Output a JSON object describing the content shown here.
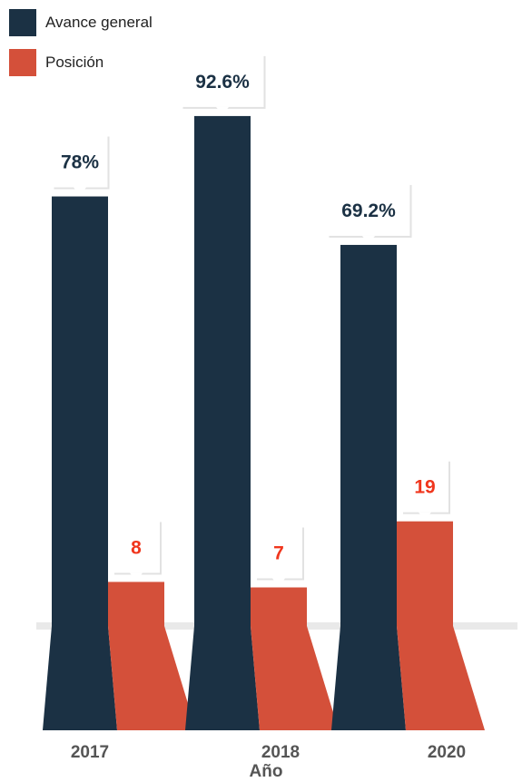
{
  "chart_data": {
    "type": "bar",
    "categories": [
      "2017",
      "2018",
      "2020"
    ],
    "series": [
      {
        "name": "Avance general",
        "values": [
          78,
          92.6,
          69.2
        ],
        "labels": [
          "78%",
          "92.6%",
          "69.2%"
        ],
        "color": "#1b3144",
        "label_color": "#1b3144"
      },
      {
        "name": "Posición",
        "values": [
          8,
          7,
          19
        ],
        "labels": [
          "8",
          "7",
          "19"
        ],
        "color": "#d4503a",
        "label_color": "#f0361d"
      }
    ],
    "xlabel": "Año",
    "ylabel": "",
    "ylim": [
      0,
      100
    ],
    "grid": false,
    "legend_position": "top-left"
  }
}
